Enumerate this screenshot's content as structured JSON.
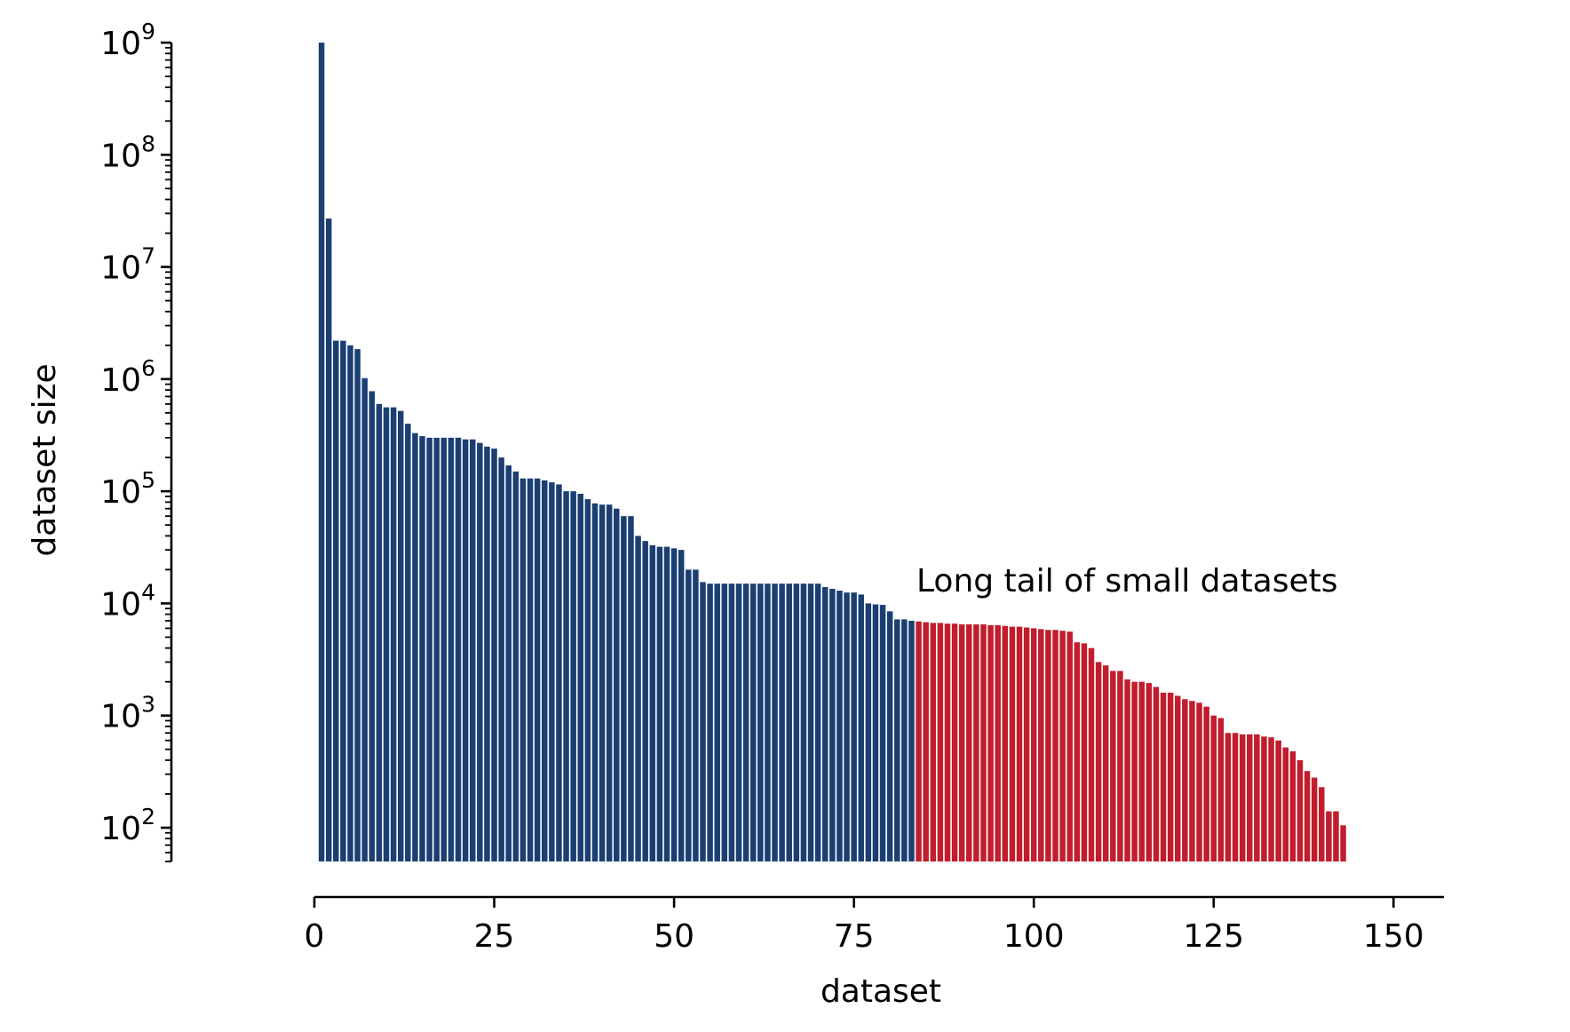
{
  "chart_data": {
    "type": "bar",
    "xlabel": "dataset",
    "ylabel": "dataset size",
    "yscale": "log",
    "ylim": [
      50,
      1000000000
    ],
    "xlim": [
      0,
      157
    ],
    "grid": false,
    "legend": "none",
    "annotation": "Long tail of small datasets",
    "colors": {
      "head": "#1b3f73",
      "tail": "#c11d2c"
    },
    "tail_start": 84,
    "x_ticks": [
      {
        "value": 0,
        "label": "0"
      },
      {
        "value": 25,
        "label": "25"
      },
      {
        "value": 50,
        "label": "50"
      },
      {
        "value": 75,
        "label": "75"
      },
      {
        "value": 100,
        "label": "100"
      },
      {
        "value": 125,
        "label": "125"
      },
      {
        "value": 150,
        "label": "150"
      }
    ],
    "y_ticks": [
      {
        "value": 100,
        "base": "10",
        "exp": "2"
      },
      {
        "value": 1000,
        "base": "10",
        "exp": "3"
      },
      {
        "value": 10000,
        "base": "10",
        "exp": "4"
      },
      {
        "value": 100000,
        "base": "10",
        "exp": "5"
      },
      {
        "value": 1000000,
        "base": "10",
        "exp": "6"
      },
      {
        "value": 10000000,
        "base": "10",
        "exp": "7"
      },
      {
        "value": 100000000,
        "base": "10",
        "exp": "8"
      },
      {
        "value": 1000000000,
        "base": "10",
        "exp": "9"
      }
    ],
    "values": [
      1000000000,
      27000000,
      2200000,
      2200000,
      2000000,
      1850000,
      1020000,
      780000,
      600000,
      560000,
      560000,
      520000,
      400000,
      330000,
      310000,
      300000,
      300000,
      300000,
      300000,
      300000,
      290000,
      290000,
      270000,
      250000,
      240000,
      200000,
      170000,
      150000,
      130000,
      130000,
      130000,
      125000,
      120000,
      115000,
      100000,
      100000,
      95000,
      85000,
      78000,
      76000,
      76000,
      70000,
      60000,
      60000,
      40000,
      36000,
      33000,
      32000,
      32000,
      31000,
      30000,
      20000,
      20000,
      15500,
      15000,
      15000,
      15000,
      15000,
      15000,
      15000,
      15000,
      15000,
      15000,
      15000,
      15000,
      15000,
      15000,
      15000,
      15000,
      15000,
      14000,
      13500,
      13000,
      12500,
      12500,
      12000,
      10000,
      9800,
      9700,
      8500,
      7200,
      7200,
      7000,
      6900,
      6800,
      6700,
      6700,
      6600,
      6600,
      6500,
      6500,
      6500,
      6500,
      6400,
      6400,
      6300,
      6200,
      6200,
      6100,
      6000,
      5900,
      5800,
      5800,
      5700,
      5600,
      4500,
      4400,
      4000,
      3000,
      2800,
      2500,
      2500,
      2100,
      2000,
      2000,
      1950,
      1800,
      1600,
      1600,
      1500,
      1400,
      1350,
      1300,
      1200,
      1000,
      950,
      700,
      700,
      680,
      680,
      680,
      650,
      640,
      600,
      520,
      480,
      400,
      320,
      280,
      230,
      140,
      140,
      105
    ]
  }
}
